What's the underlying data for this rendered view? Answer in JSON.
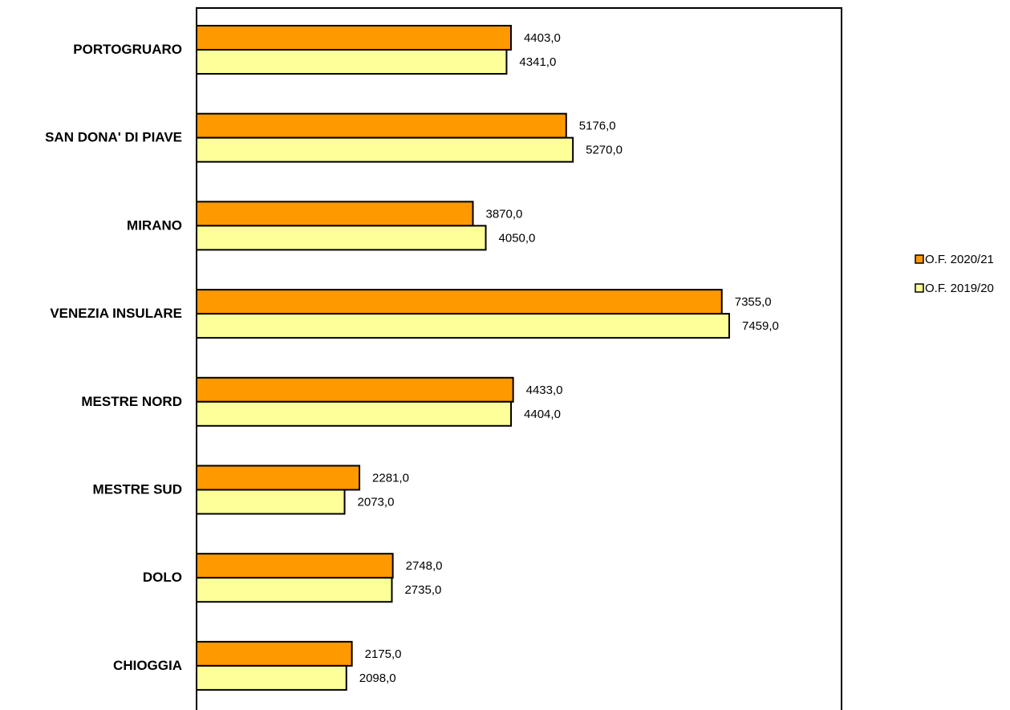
{
  "chart_data": {
    "type": "bar",
    "orientation": "horizontal",
    "categories": [
      "PORTOGRUARO",
      "SAN DONA' DI PIAVE",
      "MIRANO",
      "VENEZIA INSULARE",
      "MESTRE NORD",
      "MESTRE SUD",
      "DOLO",
      "CHIOGGIA"
    ],
    "series": [
      {
        "name": "O.F. 2020/21",
        "color": "#FF9900",
        "values": [
          4403.0,
          5176.0,
          3870.0,
          7355.0,
          4433.0,
          2281.0,
          2748.0,
          2175.0
        ],
        "labels": [
          "4403,0",
          "5176,0",
          "3870,0",
          "7355,0",
          "4433,0",
          "2281,0",
          "2748,0",
          "2175,0"
        ]
      },
      {
        "name": "O.F. 2019/20",
        "color": "#FFFF99",
        "values": [
          4341.0,
          5270.0,
          4050.0,
          7459.0,
          4404.0,
          2073.0,
          2735.0,
          2098.0
        ],
        "labels": [
          "4341,0",
          "5270,0",
          "4050,0",
          "7459,0",
          "4404,0",
          "2073,0",
          "2735,0",
          "2098,0"
        ]
      }
    ],
    "xlim": [
      0,
      9000
    ],
    "grid": false,
    "legend_position": "right"
  }
}
